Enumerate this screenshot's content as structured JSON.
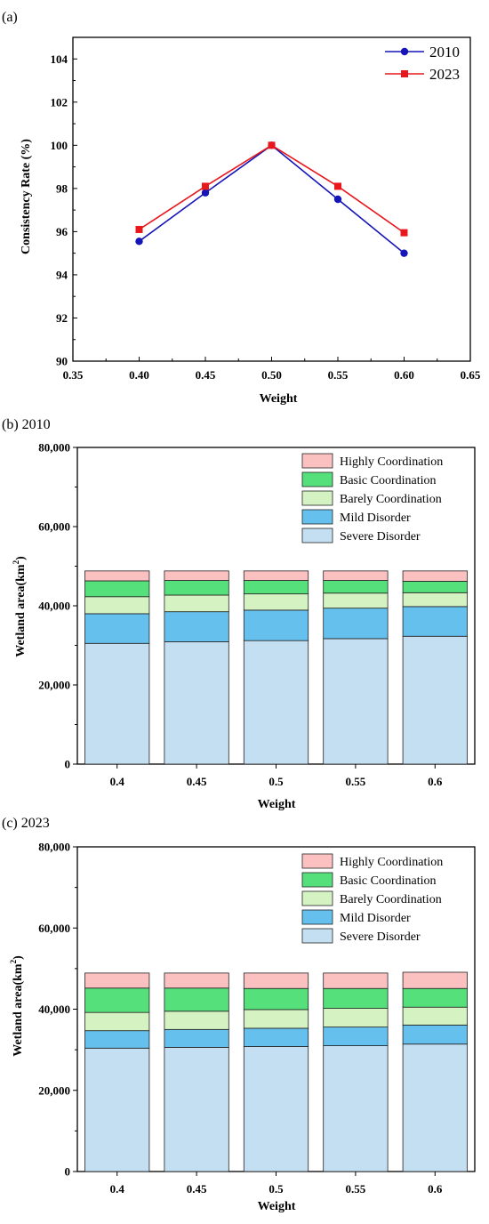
{
  "chart_data": [
    {
      "panel_label": "(a)",
      "type": "line",
      "xlabel": "Weight",
      "ylabel": "Consistency Rate (%)",
      "xlim": [
        0.35,
        0.65
      ],
      "ylim": [
        90,
        105
      ],
      "x_ticks": [
        "0.35",
        "0.40",
        "0.45",
        "0.50",
        "0.55",
        "0.60",
        "0.65"
      ],
      "y_ticks": [
        "90",
        "92",
        "94",
        "96",
        "98",
        "100",
        "102",
        "104"
      ],
      "x": [
        0.4,
        0.45,
        0.5,
        0.55,
        0.6
      ],
      "series": [
        {
          "name": "2010",
          "values": [
            95.55,
            97.8,
            100.0,
            97.5,
            95.0
          ],
          "color": "#1515b8",
          "marker": "circle"
        },
        {
          "name": "2023",
          "values": [
            96.1,
            98.1,
            100.0,
            98.1,
            95.95
          ],
          "color": "#e8171c",
          "marker": "square"
        }
      ],
      "grid": false,
      "legend": "top-right"
    },
    {
      "panel_label": "(b) 2010",
      "type": "bar",
      "stacked": true,
      "xlabel": "Weight",
      "ylabel": "Wetland area(km²)",
      "ylim": [
        0,
        80000
      ],
      "y_ticks": [
        "0",
        "20,000",
        "40,000",
        "60,000",
        "80,000"
      ],
      "categories": [
        "0.4",
        "0.45",
        "0.5",
        "0.55",
        "0.6"
      ],
      "series": [
        {
          "name": "Severe Disorder",
          "values": [
            30500,
            30900,
            31200,
            31700,
            32300
          ],
          "color": "#c5dff2"
        },
        {
          "name": "Mild Disorder",
          "values": [
            7500,
            7600,
            7700,
            7700,
            7500
          ],
          "color": "#66c0ee"
        },
        {
          "name": "Barely Coordination",
          "values": [
            4300,
            4200,
            4100,
            3800,
            3500
          ],
          "color": "#d4f2c2"
        },
        {
          "name": "Basic Coordination",
          "values": [
            4000,
            3700,
            3400,
            3200,
            2900
          ],
          "color": "#56e07c"
        },
        {
          "name": "Highly Coordination",
          "values": [
            2500,
            2400,
            2400,
            2400,
            2600
          ],
          "color": "#fbc1c1"
        }
      ],
      "grid": false,
      "legend": "top-right"
    },
    {
      "panel_label": "(c) 2023",
      "type": "bar",
      "stacked": true,
      "xlabel": "Weight",
      "ylabel": "Wetland area(km²)",
      "ylim": [
        0,
        80000
      ],
      "y_ticks": [
        "0",
        "20,000",
        "40,000",
        "60,000",
        "80,000"
      ],
      "categories": [
        "0.4",
        "0.45",
        "0.5",
        "0.55",
        "0.6"
      ],
      "series": [
        {
          "name": "Severe Disorder",
          "values": [
            30400,
            30600,
            30800,
            31000,
            31400
          ],
          "color": "#c5dff2"
        },
        {
          "name": "Mild Disorder",
          "values": [
            4300,
            4400,
            4500,
            4600,
            4700
          ],
          "color": "#66c0ee"
        },
        {
          "name": "Barely Coordination",
          "values": [
            4500,
            4500,
            4600,
            4600,
            4400
          ],
          "color": "#d4f2c2"
        },
        {
          "name": "Basic Coordination",
          "values": [
            6000,
            5700,
            5200,
            4900,
            4600
          ],
          "color": "#56e07c"
        },
        {
          "name": "Highly Coordination",
          "values": [
            3700,
            3700,
            3800,
            3800,
            4000
          ],
          "color": "#fbc1c1"
        }
      ],
      "grid": false,
      "legend": "top-right"
    }
  ]
}
